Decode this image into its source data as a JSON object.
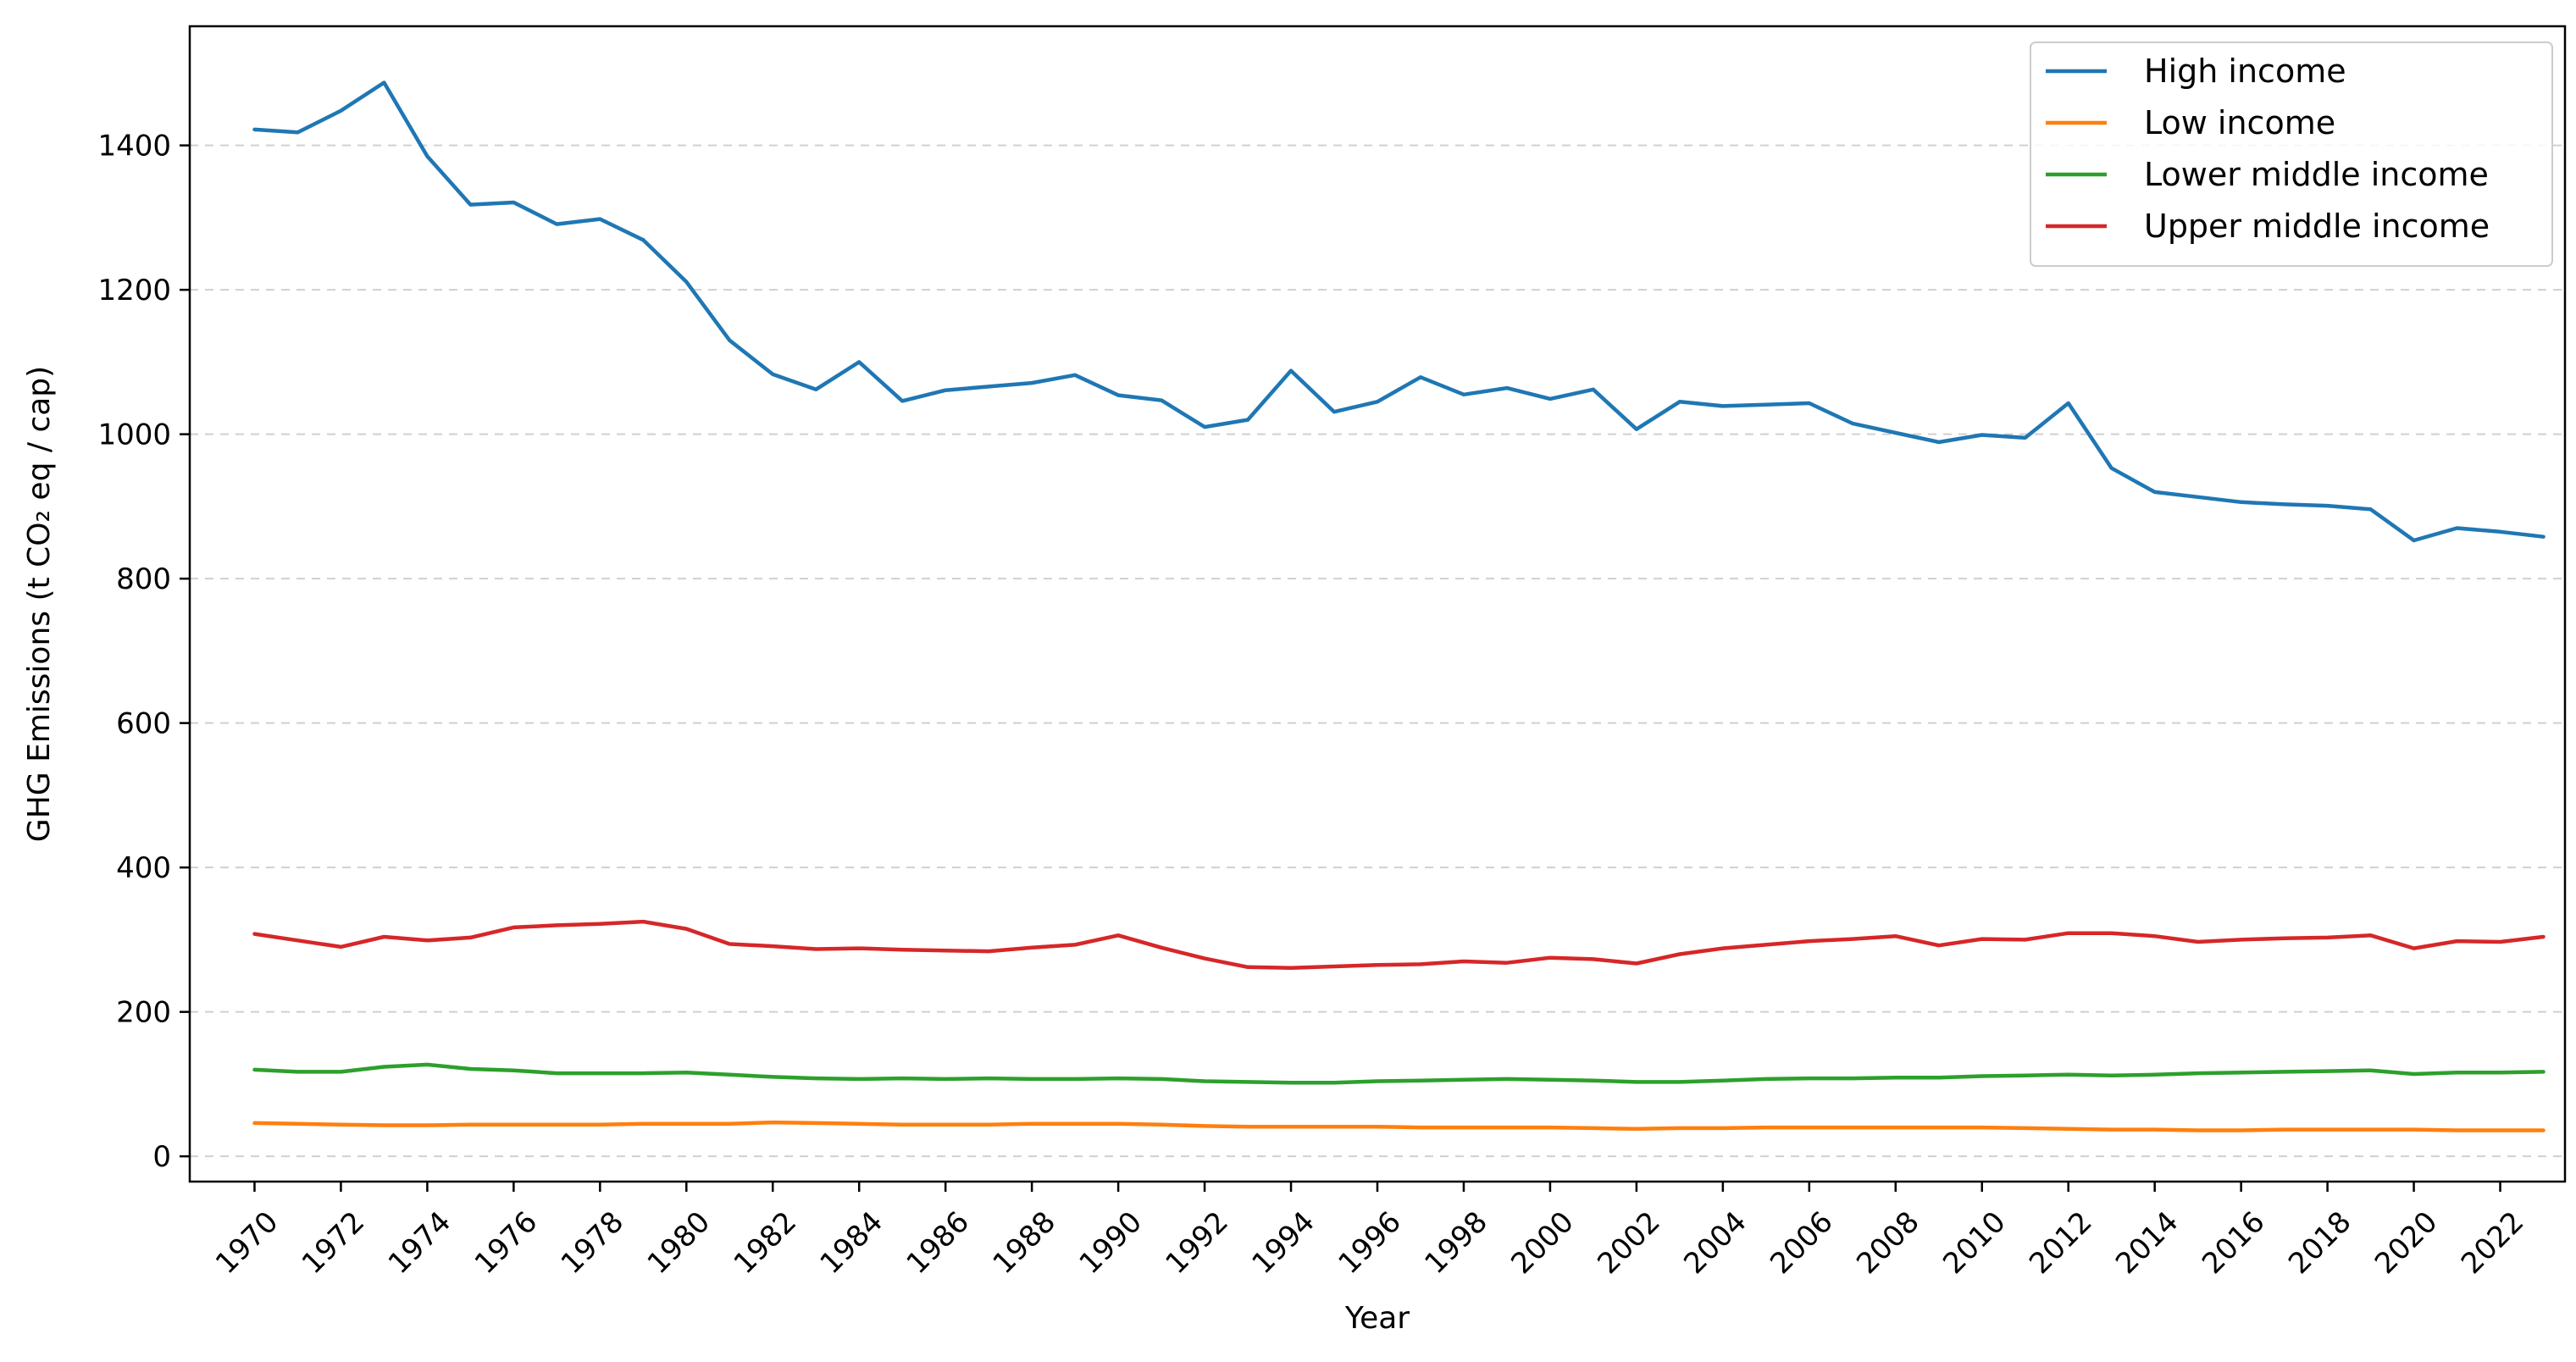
{
  "chart_data": {
    "type": "line",
    "title": "",
    "xlabel": "Year",
    "ylabel": "GHG Emissions (t CO₂ eq / cap)",
    "xlim": [
      1968.5,
      2023.5
    ],
    "ylim": [
      -35,
      1565
    ],
    "yticks": [
      0,
      200,
      400,
      600,
      800,
      1000,
      1200,
      1400
    ],
    "xticks": [
      1970,
      1972,
      1974,
      1976,
      1978,
      1980,
      1982,
      1984,
      1986,
      1988,
      1990,
      1992,
      1994,
      1996,
      1998,
      2000,
      2002,
      2004,
      2006,
      2008,
      2010,
      2012,
      2014,
      2016,
      2018,
      2020,
      2022
    ],
    "grid": "y-dashed",
    "legend_position": "top-right",
    "x": [
      1970,
      1971,
      1972,
      1973,
      1974,
      1975,
      1976,
      1977,
      1978,
      1979,
      1980,
      1981,
      1982,
      1983,
      1984,
      1985,
      1986,
      1987,
      1988,
      1989,
      1990,
      1991,
      1992,
      1993,
      1994,
      1995,
      1996,
      1997,
      1998,
      1999,
      2000,
      2001,
      2002,
      2003,
      2004,
      2005,
      2006,
      2007,
      2008,
      2009,
      2010,
      2011,
      2012,
      2013,
      2014,
      2015,
      2016,
      2017,
      2018,
      2019,
      2020,
      2021,
      2022,
      2023
    ],
    "series": [
      {
        "name": "High income",
        "color": "#1f77b4",
        "values": [
          1422,
          1418,
          1448,
          1487,
          1385,
          1318,
          1321,
          1291,
          1298,
          1269,
          1211,
          1130,
          1083,
          1062,
          1100,
          1046,
          1061,
          1066,
          1071,
          1082,
          1054,
          1047,
          1010,
          1020,
          1088,
          1031,
          1045,
          1079,
          1055,
          1064,
          1049,
          1062,
          1007,
          1045,
          1039,
          1041,
          1043,
          1015,
          1002,
          989,
          999,
          995,
          1043,
          953,
          920,
          913,
          906,
          903,
          901,
          896,
          853,
          870,
          865,
          858
        ]
      },
      {
        "name": "Low income",
        "color": "#ff7f0e",
        "values": [
          46,
          45,
          44,
          43,
          43,
          44,
          44,
          44,
          44,
          45,
          45,
          45,
          47,
          46,
          45,
          44,
          44,
          44,
          45,
          45,
          45,
          44,
          42,
          41,
          41,
          41,
          41,
          40,
          40,
          40,
          40,
          39,
          38,
          39,
          39,
          40,
          40,
          40,
          40,
          40,
          40,
          39,
          38,
          37,
          37,
          36,
          36,
          37,
          37,
          37,
          37,
          36,
          36,
          36
        ]
      },
      {
        "name": "Lower middle income",
        "color": "#2ca02c",
        "values": [
          120,
          117,
          117,
          124,
          127,
          121,
          119,
          115,
          115,
          115,
          116,
          113,
          110,
          108,
          107,
          108,
          107,
          108,
          107,
          107,
          108,
          107,
          104,
          103,
          102,
          102,
          104,
          105,
          106,
          107,
          106,
          105,
          103,
          103,
          105,
          107,
          108,
          108,
          109,
          109,
          111,
          112,
          113,
          112,
          113,
          115,
          116,
          117,
          118,
          119,
          114,
          116,
          116,
          117
        ]
      },
      {
        "name": "Upper middle income",
        "color": "#d62728",
        "values": [
          308,
          299,
          290,
          304,
          299,
          303,
          317,
          320,
          322,
          325,
          315,
          294,
          291,
          287,
          288,
          286,
          285,
          284,
          289,
          293,
          306,
          289,
          274,
          262,
          261,
          263,
          265,
          266,
          270,
          268,
          275,
          273,
          267,
          280,
          288,
          293,
          298,
          301,
          305,
          292,
          301,
          300,
          309,
          309,
          305,
          297,
          300,
          302,
          303,
          306,
          288,
          298,
          297,
          304
        ]
      }
    ]
  }
}
